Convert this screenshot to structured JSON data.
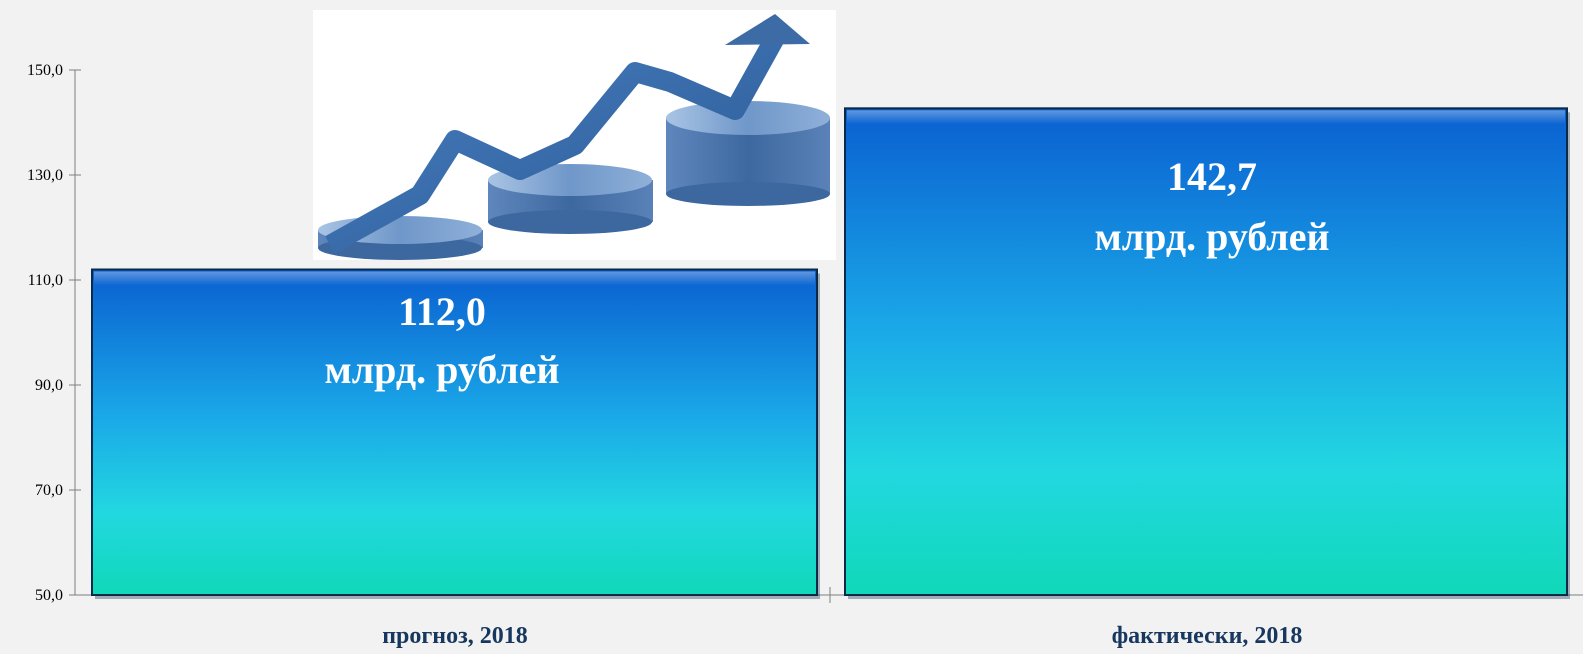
{
  "chart_data": {
    "type": "bar",
    "categories": [
      "прогноз, 2018",
      "фактически, 2018"
    ],
    "values": [
      112.0,
      142.7
    ],
    "value_labels": [
      "112,0",
      "142,7"
    ],
    "unit_label": "млрд. рублей",
    "yticks": [
      "50,0",
      "70,0",
      "90,0",
      "110,0",
      "130,0",
      "150,0"
    ],
    "ylim": [
      50,
      150
    ],
    "title": "",
    "xlabel": "",
    "ylabel": "",
    "grid": false,
    "legend": "none",
    "colors": {
      "bar_top": "#0a5fd0",
      "bar_mid": "#1aa8e8",
      "bar_low": "#22d8e0",
      "bar_bottom": "#10d8b8",
      "bar_border": "#0b2a4a",
      "axis": "#7f7f7f",
      "category_text": "#17375e"
    },
    "decoration": "rising-arrow-pie-chart-graphic"
  }
}
